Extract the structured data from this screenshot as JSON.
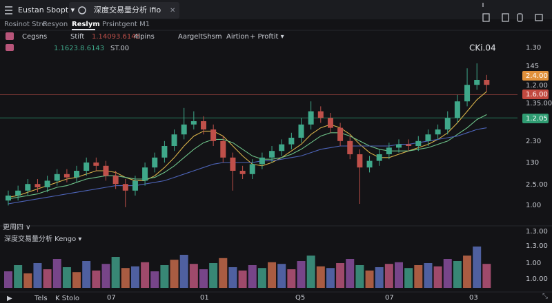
{
  "header": {
    "tabs": [
      "Eustan Sbopt ▾",
      "深度交易量分析 ifio"
    ],
    "close": "✕"
  },
  "nav": {
    "items": [
      "Rosinot Stre",
      "Resyon",
      "Reslym",
      "Prsintgent M1"
    ],
    "active": 2
  },
  "toolbar": {
    "items": [
      "Cegsns",
      "Stift",
      "1.14093.6145",
      "4lpins",
      "Aargelt",
      "Shsm",
      "Airtion",
      "+ Proftit ▾"
    ]
  },
  "legend": {
    "items": [
      "1.1623.8.6143",
      "ST.00"
    ]
  },
  "chart_data": {
    "type": "candlestick",
    "annotation": "CKi.04",
    "period": "更周四 ∨",
    "price_labels": [
      "1.30",
      "145",
      "1.2.00",
      "1.35.00",
      "2.30",
      "130",
      "2.5.00",
      "1.00"
    ],
    "badges": [
      {
        "label": "2.4.00",
        "color": "#e0913c"
      },
      {
        "label": "1.6.00",
        "color": "#c2493f"
      },
      {
        "label": "1.2.05",
        "color": "#2f9c72"
      }
    ],
    "ylim": [
      0,
      100
    ],
    "up_color": "#3fa88a",
    "down_color": "#c0504a",
    "open": [
      12,
      15,
      18,
      22,
      20,
      24,
      28,
      26,
      30,
      35,
      33,
      27,
      22,
      18,
      24,
      32,
      38,
      45,
      52,
      58,
      60,
      55,
      48,
      38,
      30,
      28,
      34,
      38,
      42,
      46,
      50,
      58,
      66,
      62,
      56,
      48,
      40,
      32,
      36,
      40,
      44,
      46,
      45,
      48,
      52,
      55,
      62,
      72,
      82,
      85
    ],
    "high": [
      18,
      21,
      25,
      25,
      27,
      31,
      31,
      33,
      38,
      38,
      36,
      30,
      25,
      27,
      35,
      41,
      48,
      55,
      68,
      66,
      63,
      58,
      51,
      41,
      33,
      37,
      41,
      45,
      49,
      53,
      62,
      72,
      69,
      65,
      59,
      51,
      43,
      39,
      43,
      47,
      49,
      49,
      51,
      55,
      58,
      66,
      76,
      92,
      95,
      88
    ],
    "low": [
      9,
      12,
      15,
      17,
      17,
      21,
      23,
      23,
      27,
      30,
      24,
      19,
      8,
      15,
      21,
      29,
      35,
      42,
      49,
      55,
      52,
      45,
      35,
      18,
      25,
      25,
      31,
      35,
      39,
      43,
      47,
      55,
      59,
      53,
      45,
      37,
      10,
      29,
      33,
      37,
      41,
      42,
      42,
      45,
      49,
      52,
      59,
      69,
      79,
      78
    ],
    "close": [
      15,
      18,
      22,
      20,
      24,
      28,
      26,
      30,
      35,
      33,
      27,
      22,
      18,
      24,
      32,
      38,
      45,
      52,
      58,
      60,
      55,
      48,
      38,
      30,
      28,
      34,
      38,
      42,
      46,
      50,
      58,
      66,
      62,
      56,
      48,
      40,
      32,
      36,
      40,
      44,
      46,
      45,
      48,
      52,
      55,
      62,
      72,
      82,
      85,
      82
    ],
    "series": [
      {
        "color": "#d9b24a",
        "values": [
          14,
          15,
          17,
          19,
          21,
          23,
          25,
          26,
          28,
          30,
          30,
          29,
          26,
          24,
          24,
          27,
          32,
          38,
          45,
          51,
          54,
          54,
          51,
          45,
          39,
          34,
          33,
          35,
          38,
          42,
          46,
          52,
          56,
          58,
          56,
          52,
          46,
          41,
          38,
          38,
          40,
          42,
          44,
          46,
          49,
          53,
          59,
          66,
          73,
          78
        ]
      },
      {
        "color": "#6fc48a",
        "values": [
          13,
          14,
          15,
          16,
          18,
          20,
          21,
          23,
          25,
          26,
          27,
          27,
          26,
          25,
          25,
          26,
          29,
          33,
          38,
          43,
          47,
          49,
          49,
          47,
          43,
          39,
          37,
          37,
          38,
          40,
          43,
          47,
          51,
          53,
          53,
          51,
          48,
          45,
          43,
          42,
          42,
          42,
          43,
          44,
          46,
          48,
          52,
          56,
          61,
          64
        ]
      },
      {
        "color": "#4d64b8",
        "values": [
          10,
          11,
          12,
          13,
          14,
          15,
          16,
          17,
          18,
          19,
          20,
          21,
          21,
          21,
          22,
          23,
          24,
          26,
          28,
          30,
          32,
          34,
          35,
          35,
          35,
          35,
          36,
          36,
          37,
          38,
          39,
          41,
          43,
          44,
          45,
          45,
          45,
          45,
          45,
          45,
          46,
          46,
          47,
          48,
          49,
          50,
          51,
          53,
          55,
          56
        ]
      }
    ],
    "levels": [
      {
        "value": 76,
        "color": "#c0504a"
      },
      {
        "value": 62,
        "color": "#2f9c72"
      }
    ]
  },
  "volume": {
    "title": "深度交易量分析 Kengo ▾",
    "ylim": [
      0,
      110
    ],
    "colors": [
      "#8a4f9e",
      "#3f9c86",
      "#c46a4a",
      "#5a6fb8",
      "#b8557a"
    ],
    "values": [
      40,
      55,
      35,
      60,
      45,
      70,
      50,
      38,
      65,
      42,
      58,
      75,
      48,
      52,
      62,
      40,
      55,
      68,
      80,
      58,
      45,
      60,
      72,
      50,
      42,
      55,
      48,
      62,
      58,
      45,
      65,
      78,
      52,
      48,
      60,
      70,
      55,
      42,
      50,
      58,
      62,
      48,
      55,
      60,
      52,
      70,
      65,
      78,
      100,
      58
    ],
    "axis_labels": [
      "1.3.00",
      "1.3.00",
      "1.00",
      "1.0.00"
    ]
  },
  "footer": {
    "controls": [
      "▶",
      "Tels",
      "K Stolo"
    ],
    "x_labels": [
      "07",
      "01",
      "Q5",
      "07",
      "03"
    ]
  }
}
